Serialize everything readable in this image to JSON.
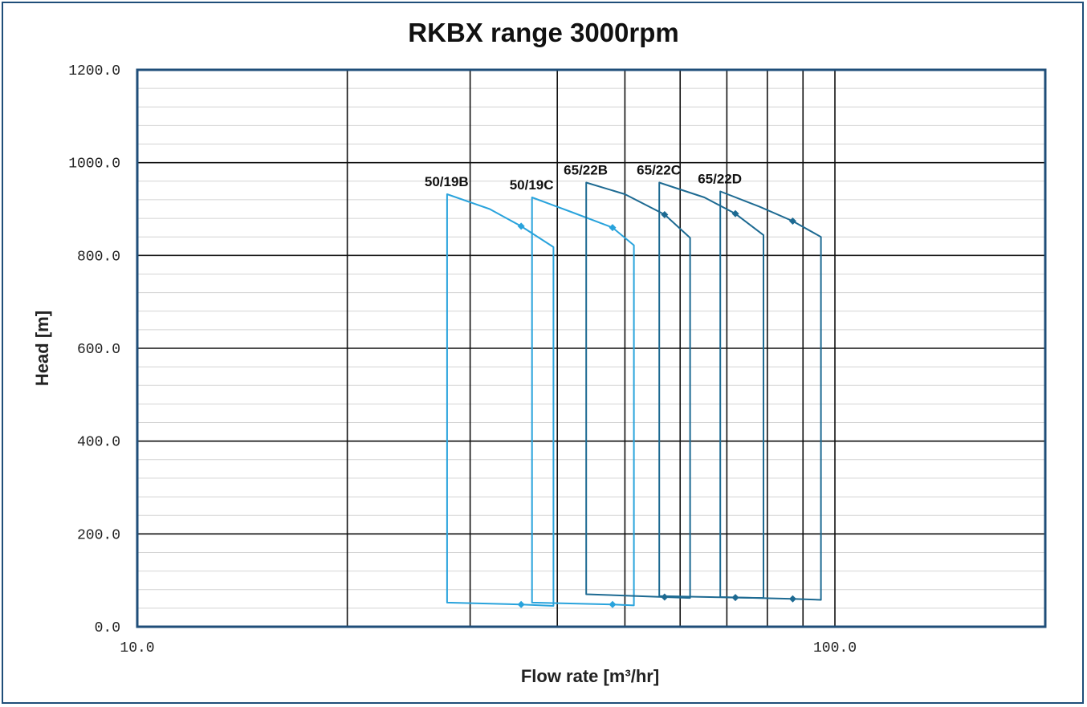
{
  "chart_data": {
    "type": "line",
    "title": "RKBX range 3000rpm",
    "xlabel": "Flow rate [m³/hr]",
    "ylabel": "Head [m]",
    "x_scale": "log",
    "xlim": [
      10,
      180
    ],
    "ylim": [
      0,
      1200
    ],
    "x_tick_labels": [
      {
        "value": 10,
        "label": "10.0"
      },
      {
        "value": 100,
        "label": "100.0"
      }
    ],
    "y_tick_labels": [
      {
        "value": 0,
        "label": "0.0"
      },
      {
        "value": 200,
        "label": "200.0"
      },
      {
        "value": 400,
        "label": "400.0"
      },
      {
        "value": 600,
        "label": "600.0"
      },
      {
        "value": 800,
        "label": "800.0"
      },
      {
        "value": 1000,
        "label": "1000.0"
      },
      {
        "value": 1200,
        "label": "1200.0"
      }
    ],
    "grid": true,
    "series": [
      {
        "name": "50/19B",
        "color": "#29a3dc",
        "q_min": 27.8,
        "q_max": 39.5,
        "head_curve_max": [
          [
            27.8,
            932
          ],
          [
            32,
            900
          ],
          [
            35.5,
            863
          ],
          [
            39.5,
            818
          ]
        ],
        "head_curve_min": [
          [
            27.8,
            52
          ],
          [
            35.5,
            48
          ],
          [
            39.5,
            45
          ]
        ],
        "bep": [
          [
            35.5,
            863
          ],
          [
            35.5,
            48
          ]
        ]
      },
      {
        "name": "50/19C",
        "color": "#29a3dc",
        "q_min": 36.8,
        "q_max": 51.5,
        "head_curve_max": [
          [
            36.8,
            925
          ],
          [
            42,
            893
          ],
          [
            48,
            860
          ],
          [
            51.5,
            822
          ]
        ],
        "head_curve_min": [
          [
            36.8,
            52
          ],
          [
            48,
            48
          ],
          [
            51.5,
            46
          ]
        ],
        "bep": [
          [
            48,
            860
          ],
          [
            48,
            48
          ]
        ]
      },
      {
        "name": "65/22B",
        "color": "#1d6a92",
        "q_min": 44,
        "q_max": 62,
        "head_curve_max": [
          [
            44,
            957
          ],
          [
            50,
            932
          ],
          [
            57,
            888
          ],
          [
            62,
            838
          ]
        ],
        "head_curve_min": [
          [
            44,
            70
          ],
          [
            57,
            64
          ],
          [
            62,
            62
          ]
        ],
        "bep": [
          [
            57,
            888
          ],
          [
            57,
            64
          ]
        ]
      },
      {
        "name": "65/22C",
        "color": "#1d6a92",
        "q_min": 56,
        "q_max": 79,
        "head_curve_max": [
          [
            56,
            957
          ],
          [
            65,
            925
          ],
          [
            72,
            890
          ],
          [
            79,
            844
          ]
        ],
        "head_curve_min": [
          [
            56,
            66
          ],
          [
            72,
            63
          ],
          [
            79,
            62
          ]
        ],
        "bep": [
          [
            72,
            890
          ],
          [
            72,
            63
          ]
        ]
      },
      {
        "name": "65/22D",
        "color": "#1d6a92",
        "q_min": 68.5,
        "q_max": 95.5,
        "head_curve_max": [
          [
            68.5,
            938
          ],
          [
            78,
            905
          ],
          [
            87,
            874
          ],
          [
            95.5,
            840
          ]
        ],
        "head_curve_min": [
          [
            68.5,
            64
          ],
          [
            87,
            60
          ],
          [
            95.5,
            58
          ]
        ],
        "bep": [
          [
            87,
            874
          ],
          [
            87,
            60
          ]
        ]
      }
    ]
  }
}
